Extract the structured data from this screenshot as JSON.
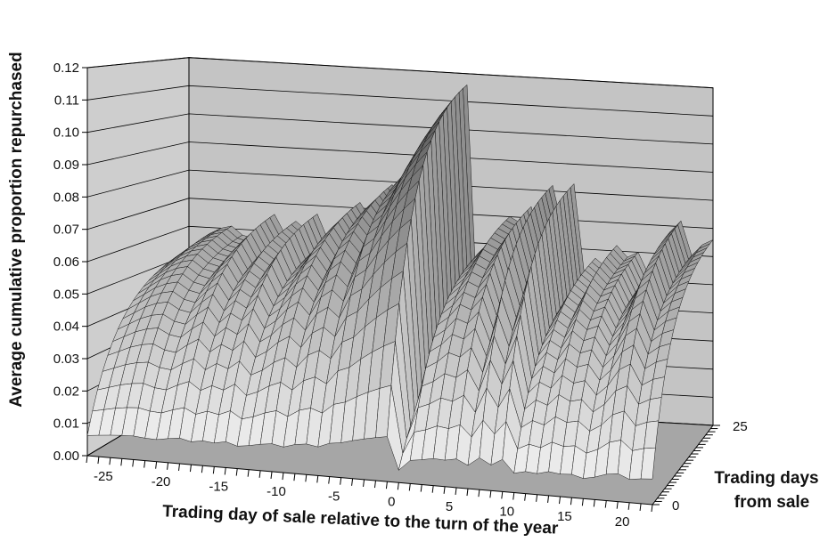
{
  "chart_data": {
    "type": "surface3d",
    "zlabel": "Average cumulative proportion repurchased",
    "xlabel": "Trading day of sale relative to the turn of the year",
    "ylabel_line1": "Trading days",
    "ylabel_line2": "from sale",
    "z_range": [
      0,
      0.12
    ],
    "z_ticks": [
      "0.00",
      "0.01",
      "0.02",
      "0.03",
      "0.04",
      "0.05",
      "0.06",
      "0.07",
      "0.08",
      "0.09",
      "0.10",
      "0.11",
      "0.12"
    ],
    "x_range": [
      -27,
      22
    ],
    "x_ticks": [
      {
        "label": "-25",
        "value": -25
      },
      {
        "label": "-20",
        "value": -20
      },
      {
        "label": "-15",
        "value": -15
      },
      {
        "label": "-10",
        "value": -10
      },
      {
        "label": "-5",
        "value": -5
      },
      {
        "label": "0",
        "value": 0
      },
      {
        "label": "5",
        "value": 5
      },
      {
        "label": "10",
        "value": 10
      },
      {
        "label": "15",
        "value": 15
      },
      {
        "label": "20",
        "value": 20
      }
    ],
    "y_range": [
      0,
      25
    ],
    "y_ticks": [
      {
        "label": "0",
        "value": 0
      },
      {
        "label": "25",
        "value": 25
      }
    ],
    "grid": true,
    "final_proportion_by_sale_day": [
      {
        "x": -27,
        "z": 0.052
      },
      {
        "x": -26,
        "z": 0.055
      },
      {
        "x": -25,
        "z": 0.058
      },
      {
        "x": -24,
        "z": 0.06
      },
      {
        "x": -23,
        "z": 0.061
      },
      {
        "x": -22,
        "z": 0.058
      },
      {
        "x": -21,
        "z": 0.057
      },
      {
        "x": -20,
        "z": 0.062
      },
      {
        "x": -19,
        "z": 0.066
      },
      {
        "x": -18,
        "z": 0.059
      },
      {
        "x": -17,
        "z": 0.064
      },
      {
        "x": -16,
        "z": 0.061
      },
      {
        "x": -15,
        "z": 0.067
      },
      {
        "x": -14,
        "z": 0.058
      },
      {
        "x": -13,
        "z": 0.062
      },
      {
        "x": -12,
        "z": 0.068
      },
      {
        "x": -11,
        "z": 0.072
      },
      {
        "x": -10,
        "z": 0.066
      },
      {
        "x": -9,
        "z": 0.075
      },
      {
        "x": -8,
        "z": 0.079
      },
      {
        "x": -7,
        "z": 0.074
      },
      {
        "x": -6,
        "z": 0.086
      },
      {
        "x": -5,
        "z": 0.09
      },
      {
        "x": -4,
        "z": 0.098
      },
      {
        "x": -3,
        "z": 0.105
      },
      {
        "x": -2,
        "z": 0.111
      },
      {
        "x": -1,
        "z": 0.116
      },
      {
        "x": 0,
        "z": 0.032
      },
      {
        "x": 1,
        "z": 0.06
      },
      {
        "x": 2,
        "z": 0.064
      },
      {
        "x": 3,
        "z": 0.07
      },
      {
        "x": 4,
        "z": 0.068
      },
      {
        "x": 5,
        "z": 0.074
      },
      {
        "x": 6,
        "z": 0.06
      },
      {
        "x": 7,
        "z": 0.082
      },
      {
        "x": 8,
        "z": 0.066
      },
      {
        "x": 9,
        "z": 0.083
      },
      {
        "x": 10,
        "z": 0.05
      },
      {
        "x": 11,
        "z": 0.057
      },
      {
        "x": 12,
        "z": 0.054
      },
      {
        "x": 13,
        "z": 0.062
      },
      {
        "x": 14,
        "z": 0.058
      },
      {
        "x": 15,
        "z": 0.06
      },
      {
        "x": 16,
        "z": 0.052
      },
      {
        "x": 17,
        "z": 0.058
      },
      {
        "x": 18,
        "z": 0.068
      },
      {
        "x": 19,
        "z": 0.072
      },
      {
        "x": 20,
        "z": 0.06
      },
      {
        "x": 21,
        "z": 0.064
      },
      {
        "x": 22,
        "z": 0.066
      }
    ]
  }
}
